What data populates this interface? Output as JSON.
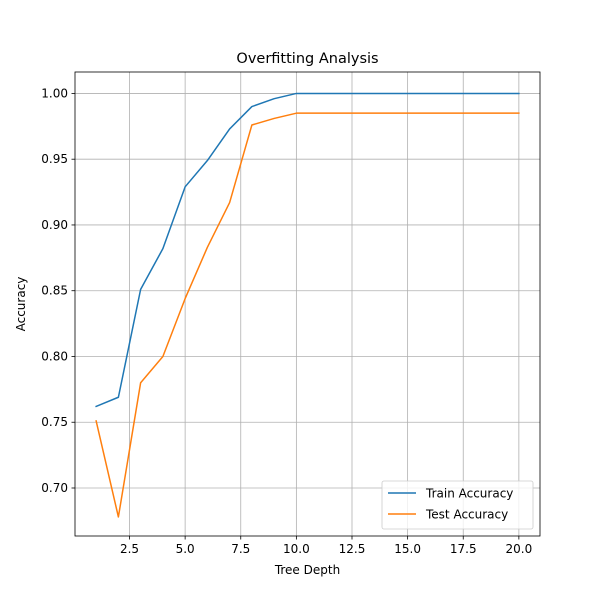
{
  "chart_data": {
    "type": "line",
    "title": "Overfitting Analysis",
    "xlabel": "Tree Depth",
    "ylabel": "Accuracy",
    "xlim": [
      0.05,
      20.95
    ],
    "ylim": [
      0.6635,
      1.0163
    ],
    "x_ticks": [
      2.5,
      5.0,
      7.5,
      10.0,
      12.5,
      15.0,
      17.5,
      20.0
    ],
    "x_tick_labels": [
      "2.5",
      "5.0",
      "7.5",
      "10.0",
      "12.5",
      "15.0",
      "17.5",
      "20.0"
    ],
    "y_ticks": [
      0.7,
      0.75,
      0.8,
      0.85,
      0.9,
      0.95,
      1.0
    ],
    "y_tick_labels": [
      "0.70",
      "0.75",
      "0.80",
      "0.85",
      "0.90",
      "0.95",
      "1.00"
    ],
    "grid": true,
    "legend_position": "lower-right",
    "x": [
      1,
      2,
      3,
      4,
      5,
      6,
      7,
      8,
      9,
      10,
      11,
      12,
      13,
      14,
      15,
      16,
      17,
      18,
      19,
      20
    ],
    "series": [
      {
        "name": "Train Accuracy",
        "color": "#1f77b4",
        "values": [
          0.762,
          0.769,
          0.851,
          0.882,
          0.929,
          0.949,
          0.973,
          0.99,
          0.996,
          1.0,
          1.0,
          1.0,
          1.0,
          1.0,
          1.0,
          1.0,
          1.0,
          1.0,
          1.0,
          1.0
        ]
      },
      {
        "name": "Test Accuracy",
        "color": "#ff7f0e",
        "values": [
          0.751,
          0.678,
          0.78,
          0.8,
          0.844,
          0.883,
          0.917,
          0.976,
          0.981,
          0.985,
          0.985,
          0.985,
          0.985,
          0.985,
          0.985,
          0.985,
          0.985,
          0.985,
          0.985,
          0.985
        ]
      }
    ]
  }
}
